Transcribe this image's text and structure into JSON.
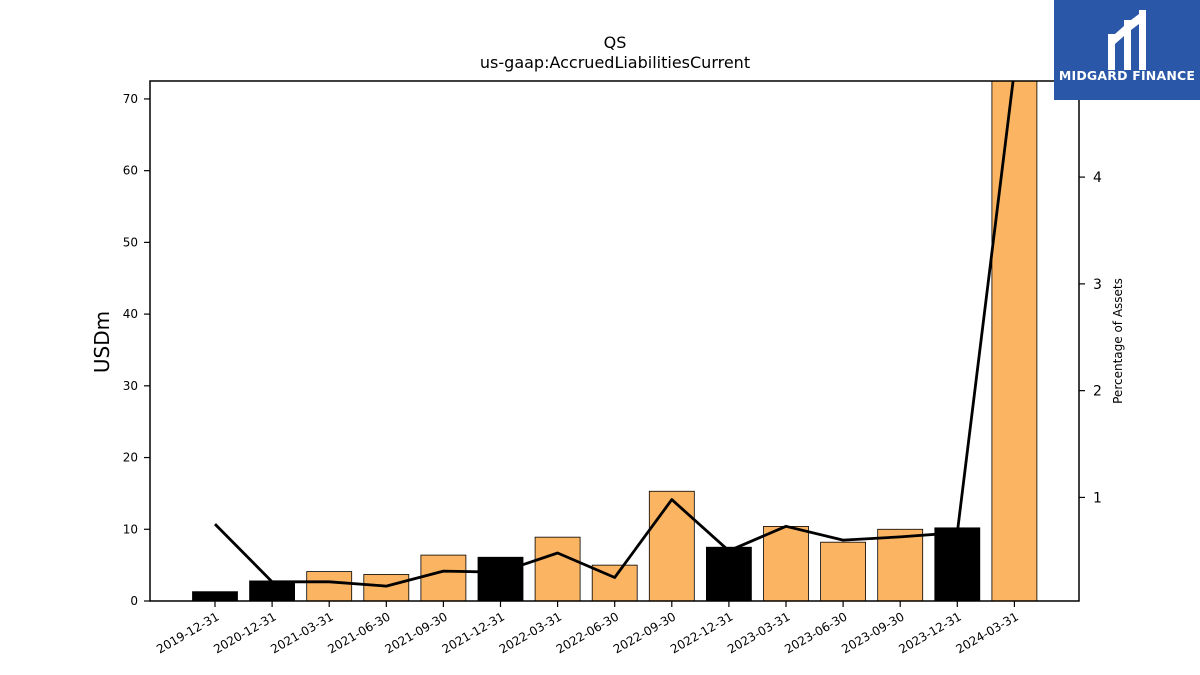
{
  "chart_data": {
    "type": "bar",
    "title": "QS",
    "subtitle": "us-gaap:AccruedLiabilitiesCurrent",
    "ylabel": "USDm",
    "y2label": "Percentage of Assets",
    "categories": [
      "2019-12-31",
      "2020-12-31",
      "2021-03-31",
      "2021-06-30",
      "2021-09-30",
      "2021-12-31",
      "2022-03-31",
      "2022-06-30",
      "2022-09-30",
      "2022-12-31",
      "2023-03-31",
      "2023-06-30",
      "2023-09-30",
      "2023-12-31",
      "2024-03-31"
    ],
    "series": [
      {
        "type": "bar",
        "axis": "left",
        "values": [
          1.3,
          2.8,
          4.1,
          3.7,
          6.4,
          6.1,
          8.9,
          5.0,
          15.3,
          7.5,
          10.4,
          8.2,
          10.0,
          10.2,
          72.5
        ],
        "colors": [
          "#000000",
          "#000000",
          "#fbb461",
          "#fbb461",
          "#fbb461",
          "#000000",
          "#fbb461",
          "#fbb461",
          "#fbb461",
          "#000000",
          "#fbb461",
          "#fbb461",
          "#fbb461",
          "#000000",
          "#fbb461"
        ]
      },
      {
        "type": "line",
        "axis": "right",
        "color": "#000000",
        "values": [
          0.75,
          0.21,
          0.21,
          0.17,
          0.31,
          0.3,
          0.48,
          0.25,
          0.98,
          0.5,
          0.73,
          0.6,
          0.63,
          0.67,
          5.0
        ]
      }
    ],
    "ylim": [
      0,
      72.5
    ],
    "yticks": [
      0,
      10,
      20,
      30,
      40,
      50,
      60,
      70
    ],
    "y2lim": [
      0.03,
      4.9
    ],
    "y2ticks": [
      1,
      2,
      3,
      4
    ],
    "grid": false
  },
  "logo": {
    "text": "MIDGARD FINANCE"
  },
  "colors": {
    "orange_bar": "#fbb461",
    "black_bar": "#000000",
    "logo_bg": "#2b57a8"
  }
}
